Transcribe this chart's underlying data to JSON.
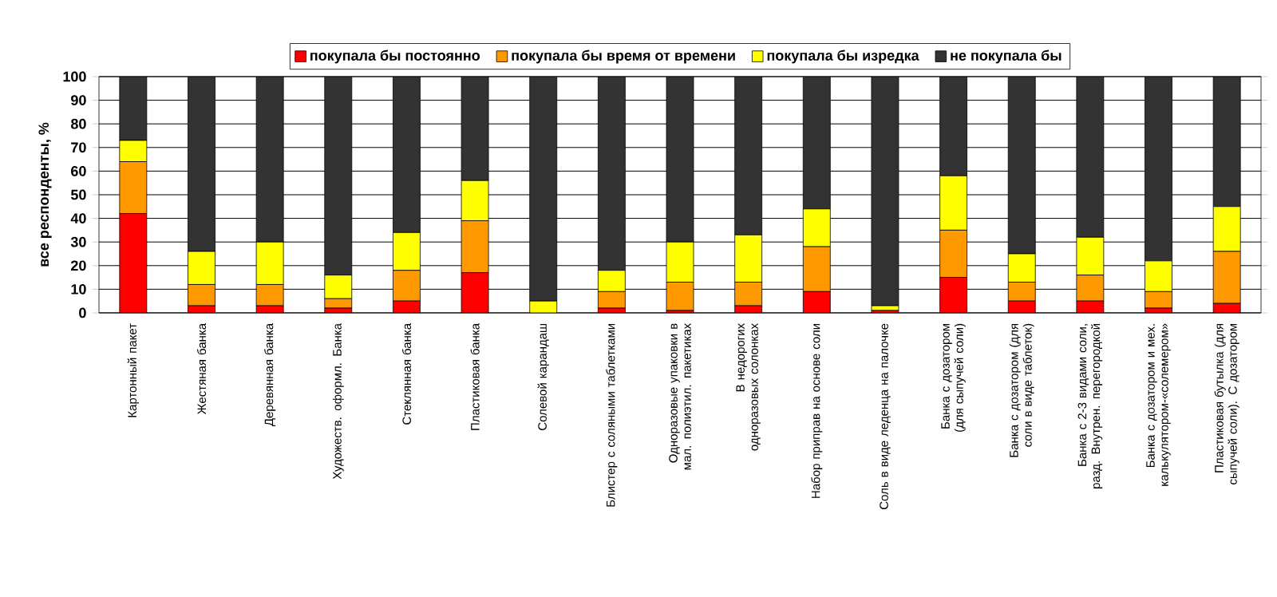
{
  "chart_data": {
    "type": "bar",
    "stacked": true,
    "ylabel": "все респонденты, %",
    "categories": [
      "Картонный пакет",
      "Жестяная банка",
      "Деревянная банка",
      "Художеств. оформл. Банка",
      "Стеклянная банка",
      "Пластиковая банка",
      "Солевой карандаш",
      "Блистер с соляными таблетками",
      "Одноразовые упаковки  в мал. полиэтил. пакетиках",
      "В недорогих одноразовых солонках",
      "Набор приправ на основе соли",
      "Соль в виде леденца на палочке",
      "Банка с дозатором  (для сыпучей соли)",
      "Банка с дозатором (для соли в виде таблеток)",
      "Банка с 2-3 видами соли, разд. Внутрен. перегородкой",
      "Банка с дозатором и мех. калькулятором-«солемером»",
      "Пластиковая бутылка (для сыпучей соли).  С дозатором"
    ],
    "series": [
      {
        "name": "покупала бы постоянно",
        "color": "#ff0000",
        "values": [
          42,
          3,
          3,
          2,
          5,
          17,
          0,
          2,
          1,
          3,
          9,
          1,
          15,
          5,
          5,
          2,
          4
        ]
      },
      {
        "name": "покупала бы время от времени",
        "color": "#ff9900",
        "values": [
          22,
          9,
          9,
          4,
          13,
          22,
          0,
          7,
          12,
          10,
          19,
          0,
          20,
          8,
          11,
          7,
          22
        ]
      },
      {
        "name": "покупала бы изредка",
        "color": "#ffff00",
        "values": [
          9,
          14,
          18,
          10,
          16,
          17,
          5,
          9,
          17,
          20,
          16,
          2,
          23,
          12,
          16,
          13,
          19
        ]
      },
      {
        "name": "не покупала бы",
        "color": "#333333",
        "values": [
          27,
          74,
          70,
          84,
          66,
          44,
          95,
          82,
          70,
          67,
          56,
          97,
          42,
          75,
          68,
          78,
          55
        ]
      }
    ],
    "ylim": [
      0,
      100
    ],
    "yticks": [
      0,
      10,
      20,
      30,
      40,
      50,
      60,
      70,
      80,
      90,
      100
    ],
    "grid": "y",
    "legend": "top"
  }
}
